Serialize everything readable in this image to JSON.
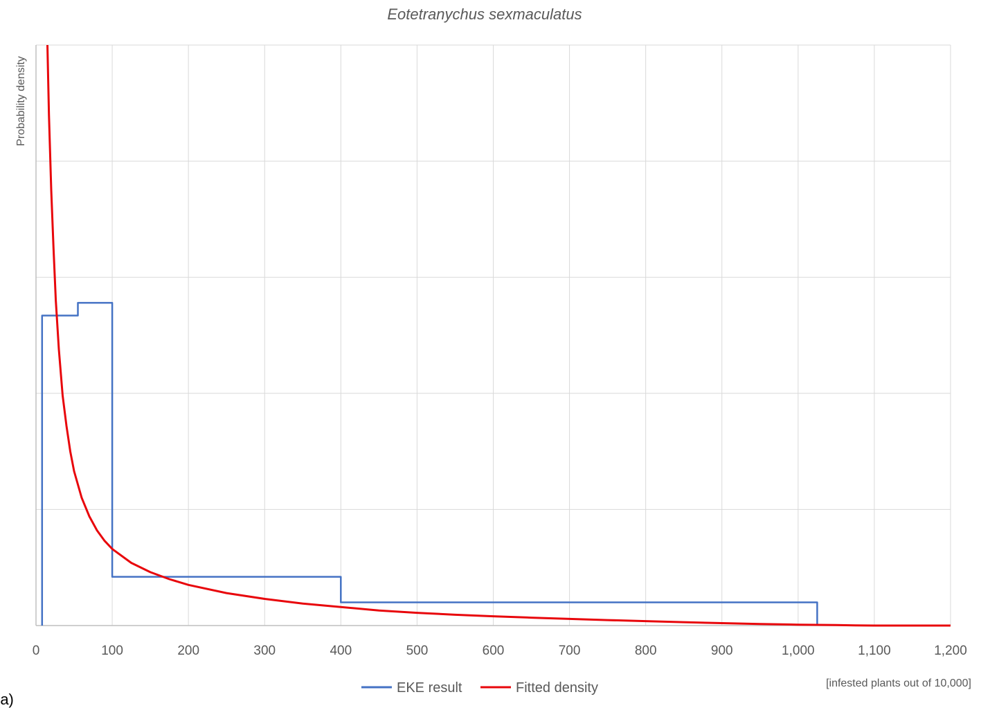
{
  "panel_label": "(a)",
  "colors": {
    "eke": "#4472C4",
    "fitted": "#E8060B",
    "grid": "#D9D9D9",
    "axis": "#BFBFBF",
    "text": "#595959"
  },
  "chart_data": {
    "type": "line",
    "title": "Eotetranychus sexmaculatus",
    "xlabel": "[infested plants out of 10,000]",
    "ylabel": "Probability density",
    "xlim": [
      0,
      1200
    ],
    "ylim": [
      0,
      5
    ],
    "grid": true,
    "legend_position": "bottom",
    "x_ticks": [
      "0",
      "100",
      "200",
      "300",
      "400",
      "500",
      "600",
      "700",
      "800",
      "900",
      "1,000",
      "1,100",
      "1,200"
    ],
    "series": [
      {
        "name": "EKE result",
        "style": "step",
        "x": [
          8,
          8,
          55,
          55,
          100,
          100,
          400,
          400,
          1025,
          1025
        ],
        "y": [
          0,
          2.67,
          2.67,
          2.78,
          2.78,
          0.42,
          0.42,
          0.2,
          0.2,
          0
        ]
      },
      {
        "name": "Fitted density",
        "style": "line",
        "x": [
          15,
          17,
          20,
          23,
          26,
          30,
          35,
          40,
          45,
          50,
          60,
          70,
          80,
          90,
          100,
          125,
          150,
          175,
          200,
          250,
          300,
          350,
          400,
          450,
          500,
          550,
          600,
          650,
          700,
          750,
          800,
          850,
          900,
          950,
          1000,
          1050,
          1075,
          1100,
          1150,
          1200
        ],
        "y": [
          5.0,
          4.4,
          3.75,
          3.25,
          2.8,
          2.38,
          1.98,
          1.72,
          1.5,
          1.33,
          1.1,
          0.94,
          0.82,
          0.73,
          0.66,
          0.54,
          0.46,
          0.4,
          0.35,
          0.28,
          0.23,
          0.19,
          0.16,
          0.13,
          0.11,
          0.093,
          0.08,
          0.068,
          0.057,
          0.047,
          0.038,
          0.029,
          0.021,
          0.014,
          0.008,
          0.004,
          0.002,
          0.0,
          0.0,
          0.0
        ]
      }
    ]
  }
}
